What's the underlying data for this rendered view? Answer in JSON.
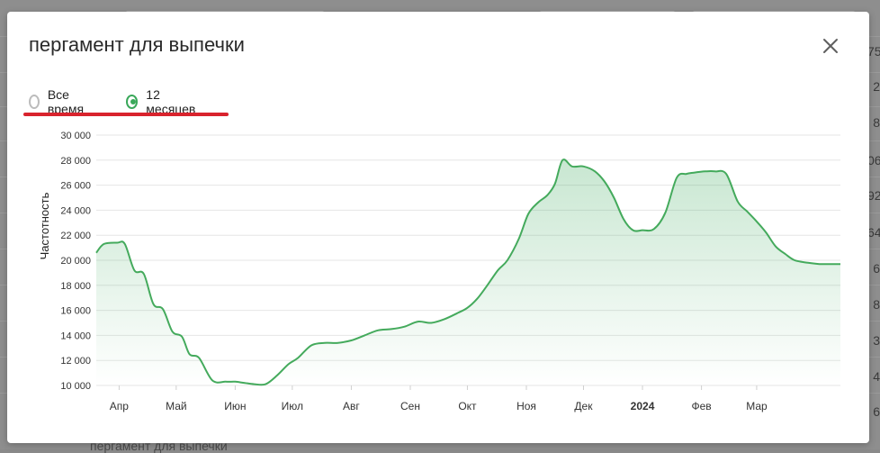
{
  "modal": {
    "title": "пергамент для выпечки"
  },
  "radio_options": [
    {
      "label": "Все время",
      "checked": false
    },
    {
      "label": "12 месяцев",
      "checked": true
    }
  ],
  "background": {
    "right_edge_fragments": [
      "75",
      "2",
      "8",
      "06",
      "92",
      "64",
      "6",
      "8",
      "3",
      "4",
      "6"
    ],
    "bottom_fragment": "пергамент для выпечки"
  },
  "colors": {
    "accent": "#3aa85a",
    "line": "#44aa5c",
    "highlight": "#d9232d"
  },
  "chart_data": {
    "type": "area",
    "title": "",
    "xlabel": "",
    "ylabel": "Частотность",
    "ylim": [
      10000,
      30000
    ],
    "y_ticks": [
      10000,
      12000,
      14000,
      16000,
      18000,
      20000,
      22000,
      24000,
      26000,
      28000,
      30000
    ],
    "y_tick_labels": [
      "10 000",
      "12 000",
      "14 000",
      "16 000",
      "18 000",
      "20 000",
      "22 000",
      "24 000",
      "26 000",
      "28 000",
      "30 000"
    ],
    "x_tick_labels": [
      {
        "label": "Апр",
        "at": "2023-04-01",
        "bold": false
      },
      {
        "label": "Май",
        "at": "2023-05-01",
        "bold": false
      },
      {
        "label": "Июн",
        "at": "2023-06-01",
        "bold": false
      },
      {
        "label": "Июл",
        "at": "2023-07-01",
        "bold": false
      },
      {
        "label": "Авг",
        "at": "2023-08-01",
        "bold": false
      },
      {
        "label": "Сен",
        "at": "2023-09-01",
        "bold": false
      },
      {
        "label": "Окт",
        "at": "2023-10-01",
        "bold": false
      },
      {
        "label": "Ноя",
        "at": "2023-11-01",
        "bold": false
      },
      {
        "label": "Дек",
        "at": "2023-12-01",
        "bold": false
      },
      {
        "label": "2024",
        "at": "2024-01-01",
        "bold": true
      },
      {
        "label": "Фев",
        "at": "2024-02-01",
        "bold": false
      },
      {
        "label": "Мар",
        "at": "2024-03-01",
        "bold": false
      }
    ],
    "x_range": [
      "2023-03-20",
      "2024-04-14"
    ],
    "grid": true,
    "legend": "none",
    "series": [
      {
        "x": [
          "2023-03-20",
          "2023-03-24",
          "2023-03-31",
          "2023-04-04",
          "2023-04-09",
          "2023-04-14",
          "2023-04-19",
          "2023-04-24",
          "2023-04-29",
          "2023-05-04",
          "2023-05-08",
          "2023-05-13",
          "2023-05-20",
          "2023-05-27",
          "2023-06-01",
          "2023-06-06",
          "2023-06-11",
          "2023-06-17",
          "2023-06-23",
          "2023-06-29",
          "2023-07-04",
          "2023-07-11",
          "2023-07-18",
          "2023-07-25",
          "2023-08-01",
          "2023-08-08",
          "2023-08-15",
          "2023-08-22",
          "2023-08-29",
          "2023-09-05",
          "2023-09-12",
          "2023-09-19",
          "2023-09-26",
          "2023-10-01",
          "2023-10-06",
          "2023-10-11",
          "2023-10-17",
          "2023-10-22",
          "2023-10-28",
          "2023-11-02",
          "2023-11-07",
          "2023-11-12",
          "2023-11-16",
          "2023-11-20",
          "2023-11-25",
          "2023-12-01",
          "2023-12-07",
          "2023-12-12",
          "2023-12-17",
          "2023-12-22",
          "2023-12-27",
          "2024-01-01",
          "2024-01-07",
          "2024-01-13",
          "2024-01-19",
          "2024-01-24",
          "2024-01-28",
          "2024-02-03",
          "2024-02-08",
          "2024-02-14",
          "2024-02-20",
          "2024-02-25",
          "2024-03-01",
          "2024-03-06",
          "2024-03-11",
          "2024-03-16",
          "2024-03-21",
          "2024-03-28",
          "2024-04-03",
          "2024-04-08",
          "2024-04-14"
        ],
        "y": [
          20600,
          21300,
          21400,
          21300,
          19200,
          18900,
          16500,
          16100,
          14300,
          13900,
          12500,
          12200,
          10400,
          10300,
          10300,
          10200,
          10100,
          10100,
          10800,
          11700,
          12200,
          13200,
          13400,
          13400,
          13600,
          14000,
          14400,
          14500,
          14700,
          15100,
          15000,
          15300,
          15800,
          16200,
          16900,
          17900,
          19200,
          20000,
          21700,
          23700,
          24600,
          25200,
          26100,
          28000,
          27500,
          27500,
          27100,
          26300,
          25000,
          23300,
          22400,
          22400,
          22500,
          23800,
          26600,
          26900,
          27000,
          27100,
          27100,
          26900,
          24700,
          23900,
          23100,
          22200,
          21100,
          20500,
          20000,
          19800,
          19700,
          19700,
          19700
        ]
      }
    ]
  }
}
